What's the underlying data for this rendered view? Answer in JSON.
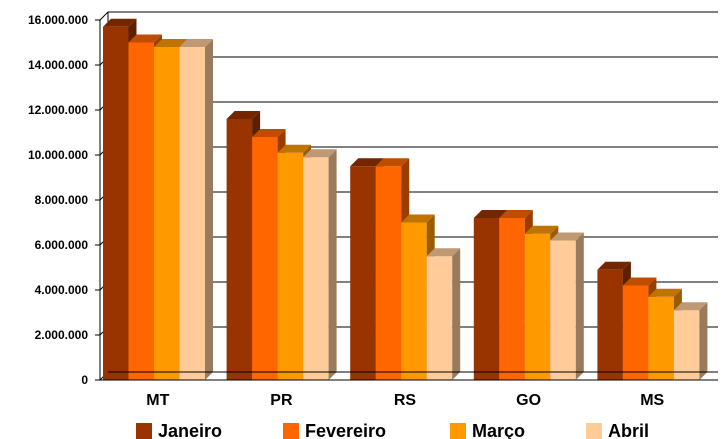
{
  "chart_data": {
    "type": "bar",
    "title": "",
    "xlabel": "",
    "ylabel": "",
    "categories": [
      "MT",
      "PR",
      "RS",
      "GO",
      "MS"
    ],
    "ylim": [
      0,
      16000000
    ],
    "yticks": [
      0,
      2000000,
      4000000,
      6000000,
      8000000,
      10000000,
      12000000,
      14000000,
      16000000
    ],
    "ytick_labels": [
      "0",
      "2.000.000",
      "4.000.000",
      "6.000.000",
      "8.000.000",
      "10.000.000",
      "12.000.000",
      "14.000.000",
      "16.000.000"
    ],
    "grid": true,
    "legend_position": "bottom",
    "series": [
      {
        "name": "Janeiro",
        "color": "#993300",
        "values": [
          15700000,
          11600000,
          9500000,
          7200000,
          4900000
        ]
      },
      {
        "name": "Fevereiro",
        "color": "#ff6600",
        "values": [
          15000000,
          10800000,
          9500000,
          7200000,
          4200000
        ]
      },
      {
        "name": "Março",
        "color": "#ff9900",
        "values": [
          14800000,
          10100000,
          7000000,
          6500000,
          3700000
        ]
      },
      {
        "name": "Abril",
        "color": "#ffcc99",
        "values": [
          14800000,
          9900000,
          5500000,
          6200000,
          3100000
        ]
      }
    ]
  }
}
